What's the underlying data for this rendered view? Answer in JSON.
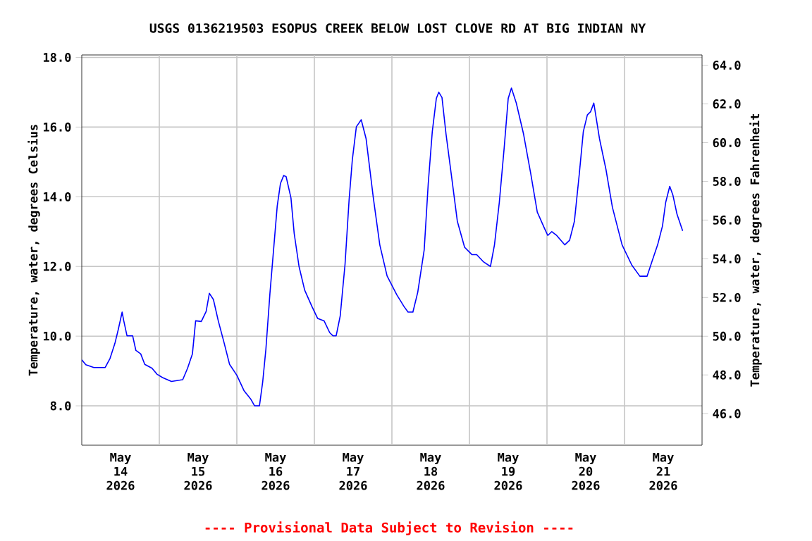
{
  "chart_data": {
    "type": "line",
    "title": "USGS 0136219503 ESOPUS CREEK BELOW LOST CLOVE RD AT BIG INDIAN NY",
    "ylabel": "Temperature, water, degrees Celsius",
    "y2label": "Temperature, water, degrees Fahrenheit",
    "annotations": [
      "---- Provisional Data Subject to Revision ----"
    ],
    "x": [
      "2026-05-14T00:00",
      "2026-05-14T01:15",
      "2026-05-14T03:45",
      "2026-05-14T07:15",
      "2026-05-14T08:45",
      "2026-05-14T10:15",
      "2026-05-14T11:15",
      "2026-05-14T12:30",
      "2026-05-14T13:00",
      "2026-05-14T14:00",
      "2026-05-14T15:45",
      "2026-05-14T16:45",
      "2026-05-14T18:15",
      "2026-05-14T19:30",
      "2026-05-14T21:45",
      "2026-05-14T23:15",
      "2026-05-15T01:00",
      "2026-05-15T03:45",
      "2026-05-15T07:15",
      "2026-05-15T08:45",
      "2026-05-15T10:15",
      "2026-05-15T11:15",
      "2026-05-15T13:00",
      "2026-05-15T14:30",
      "2026-05-15T15:30",
      "2026-05-15T16:45",
      "2026-05-15T18:15",
      "2026-05-15T20:00",
      "2026-05-15T21:45",
      "2026-05-16T00:00",
      "2026-05-16T02:15",
      "2026-05-16T04:15",
      "2026-05-16T05:30",
      "2026-05-16T07:00",
      "2026-05-16T08:00",
      "2026-05-16T09:00",
      "2026-05-16T10:15",
      "2026-05-16T11:15",
      "2026-05-16T12:30",
      "2026-05-16T13:30",
      "2026-05-16T14:30",
      "2026-05-16T15:15",
      "2026-05-16T16:45",
      "2026-05-16T17:45",
      "2026-05-16T19:15",
      "2026-05-16T21:00",
      "2026-05-16T23:15",
      "2026-05-17T01:00",
      "2026-05-17T03:00",
      "2026-05-17T04:45",
      "2026-05-17T05:45",
      "2026-05-17T06:45",
      "2026-05-17T08:00",
      "2026-05-17T09:30",
      "2026-05-17T10:45",
      "2026-05-17T11:45",
      "2026-05-17T13:00",
      "2026-05-17T14:30",
      "2026-05-17T16:00",
      "2026-05-17T18:15",
      "2026-05-17T20:15",
      "2026-05-17T22:30",
      "2026-05-18T01:30",
      "2026-05-18T03:45",
      "2026-05-18T05:00",
      "2026-05-18T06:30",
      "2026-05-18T08:00",
      "2026-05-18T10:00",
      "2026-05-18T11:15",
      "2026-05-18T12:30",
      "2026-05-18T13:45",
      "2026-05-18T14:30",
      "2026-05-18T15:30",
      "2026-05-18T16:45",
      "2026-05-18T18:45",
      "2026-05-18T20:15",
      "2026-05-18T22:30",
      "2026-05-19T00:45",
      "2026-05-19T02:15",
      "2026-05-19T04:15",
      "2026-05-19T06:30",
      "2026-05-19T07:45",
      "2026-05-19T09:15",
      "2026-05-19T10:45",
      "2026-05-19T12:00",
      "2026-05-19T13:00",
      "2026-05-19T14:30",
      "2026-05-19T16:45",
      "2026-05-19T19:00",
      "2026-05-19T21:00",
      "2026-05-19T23:15",
      "2026-05-20T00:15",
      "2026-05-20T01:30",
      "2026-05-20T03:00",
      "2026-05-20T05:30",
      "2026-05-20T07:00",
      "2026-05-20T08:30",
      "2026-05-20T10:00",
      "2026-05-20T11:15",
      "2026-05-20T12:30",
      "2026-05-20T13:30",
      "2026-05-20T14:30",
      "2026-05-20T16:15",
      "2026-05-20T18:15",
      "2026-05-20T20:15",
      "2026-05-20T23:15",
      "2026-05-21T02:15",
      "2026-05-21T04:45",
      "2026-05-21T07:00",
      "2026-05-21T08:30",
      "2026-05-21T10:15",
      "2026-05-21T11:45",
      "2026-05-21T12:45",
      "2026-05-21T14:00",
      "2026-05-21T15:00",
      "2026-05-21T16:15",
      "2026-05-21T18:00"
    ],
    "series": [
      {
        "color": "#0000ff",
        "values": [
          9.32,
          9.18,
          9.1,
          9.1,
          9.36,
          9.79,
          10.17,
          10.69,
          10.44,
          10.01,
          10.01,
          9.59,
          9.49,
          9.19,
          9.08,
          8.91,
          8.81,
          8.7,
          8.75,
          9.08,
          9.49,
          10.44,
          10.42,
          10.71,
          11.23,
          11.05,
          10.44,
          9.83,
          9.19,
          8.88,
          8.43,
          8.2,
          8.0,
          8.0,
          8.68,
          9.63,
          11.23,
          12.34,
          13.73,
          14.38,
          14.61,
          14.58,
          13.97,
          12.95,
          12.0,
          11.32,
          10.85,
          10.51,
          10.44,
          10.1,
          10.01,
          10.01,
          10.58,
          12.07,
          13.91,
          15.06,
          16.01,
          16.21,
          15.67,
          13.97,
          12.62,
          11.73,
          11.19,
          10.85,
          10.69,
          10.69,
          11.26,
          12.48,
          14.38,
          15.87,
          16.82,
          17.0,
          16.85,
          15.8,
          14.38,
          13.3,
          12.55,
          12.34,
          12.34,
          12.14,
          12.0,
          12.62,
          13.84,
          15.4,
          16.82,
          17.12,
          16.69,
          15.8,
          14.65,
          13.56,
          13.09,
          12.89,
          13.0,
          12.89,
          12.62,
          12.75,
          13.3,
          14.65,
          15.87,
          16.35,
          16.44,
          16.69,
          15.67,
          14.79,
          13.7,
          12.62,
          12.04,
          11.72,
          11.72,
          12.14,
          12.62,
          13.16,
          13.84,
          14.3,
          14.04,
          13.5,
          13.02
        ]
      }
    ],
    "xlim": [
      "2026-05-14T00:00",
      "2026-05-22T00:00"
    ],
    "xticks": [
      {
        "value": "2026-05-14T12:00",
        "label": "May 14 2026"
      },
      {
        "value": "2026-05-15T12:00",
        "label": "May 15 2026"
      },
      {
        "value": "2026-05-16T12:00",
        "label": "May 16 2026"
      },
      {
        "value": "2026-05-17T12:00",
        "label": "May 17 2026"
      },
      {
        "value": "2026-05-18T12:00",
        "label": "May 18 2026"
      },
      {
        "value": "2026-05-19T12:00",
        "label": "May 19 2026"
      },
      {
        "value": "2026-05-20T12:00",
        "label": "May 20 2026"
      },
      {
        "value": "2026-05-21T12:00",
        "label": "May 21 2026"
      },
      {
        "value": "2026-05-15T00:00",
        "label": null
      },
      {
        "value": "2026-05-16T00:00",
        "label": null
      },
      {
        "value": "2026-05-17T00:00",
        "label": null
      },
      {
        "value": "2026-05-18T00:00",
        "label": null
      },
      {
        "value": "2026-05-19T00:00",
        "label": null
      },
      {
        "value": "2026-05-20T00:00",
        "label": null
      },
      {
        "value": "2026-05-21T00:00",
        "label": null
      }
    ],
    "ylim": [
      6.87,
      18.07
    ],
    "yticks": [
      {
        "value": 8,
        "label": "8.0"
      },
      {
        "value": 10,
        "label": "10.0"
      },
      {
        "value": 12,
        "label": "12.0"
      },
      {
        "value": 14,
        "label": "14.0"
      },
      {
        "value": 16,
        "label": "16.0"
      },
      {
        "value": 18,
        "label": "18.0"
      }
    ],
    "y2lim": [
      44.37,
      64.53
    ],
    "y2ticks": [
      {
        "value": 46,
        "label": "46.0"
      },
      {
        "value": 48,
        "label": "48.0"
      },
      {
        "value": 50,
        "label": "50.0"
      },
      {
        "value": 52,
        "label": "52.0"
      },
      {
        "value": 54,
        "label": "54.0"
      },
      {
        "value": 56,
        "label": "56.0"
      },
      {
        "value": 58,
        "label": "58.0"
      },
      {
        "value": 60,
        "label": "60.0"
      },
      {
        "value": 62,
        "label": "62.0"
      },
      {
        "value": 64,
        "label": "64.0"
      }
    ],
    "grid": true,
    "line_style": "solid"
  }
}
